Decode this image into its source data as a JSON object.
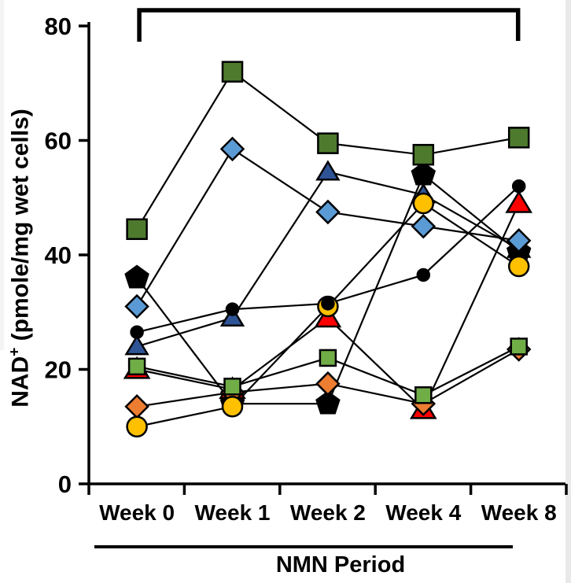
{
  "figure": {
    "ylabel_main": "NAD",
    "ylabel_sup": "+",
    "ylabel_rest": " (pmole/mg wet cells)",
    "xlabel": "NMN Period"
  },
  "chart_data": {
    "type": "line",
    "title": "",
    "xlabel": "NMN Period",
    "ylabel": "NAD+ (pmole/mg wet cells)",
    "categories": [
      "Week 0",
      "Week 1",
      "Week 2",
      "Week 4",
      "Week 8"
    ],
    "ylim": [
      0,
      80
    ],
    "yticks": [
      0,
      20,
      40,
      60,
      80
    ],
    "grid": false,
    "legend": "none",
    "line_color": "#000000",
    "annotation_bracket": {
      "x_from": "Week 0",
      "x_to": "Week 8",
      "label": ""
    },
    "series": [
      {
        "name": "subject-dark-green-square",
        "marker": "square",
        "color": "#4e7a2e",
        "marker_size": 12.5,
        "values": [
          44.5,
          72,
          59.5,
          57.5,
          60.5
        ]
      },
      {
        "name": "subject-blue-diamond",
        "marker": "diamond",
        "color": "#5b9bd5",
        "marker_size": 14,
        "values": [
          31,
          58.5,
          47.5,
          45,
          42.5
        ]
      },
      {
        "name": "subject-navy-triangle",
        "marker": "triangle",
        "color": "#2f5496",
        "marker_size": 12.5,
        "values": [
          24,
          29,
          54.5,
          50.5,
          41
        ]
      },
      {
        "name": "subject-black-pentagon",
        "marker": "pentagon",
        "color": "#000000",
        "marker_size": 15,
        "values": [
          36,
          14,
          14,
          54,
          40.5
        ]
      },
      {
        "name": "subject-black-circle",
        "marker": "circle",
        "color": "#000000",
        "marker_size": 7.5,
        "values": [
          26.5,
          30.5,
          31.5,
          36.5,
          52
        ]
      },
      {
        "name": "subject-yellow-circle",
        "marker": "circle",
        "color": "#ffc000",
        "marker_size": 12.5,
        "values": [
          10,
          13.5,
          31,
          49,
          38
        ]
      },
      {
        "name": "subject-orange-diamond",
        "marker": "diamond",
        "color": "#ed7d31",
        "marker_size": 14,
        "values": [
          13.5,
          16,
          17.5,
          14,
          23.5
        ]
      },
      {
        "name": "subject-red-triangle",
        "marker": "triangle",
        "color": "#ff0000",
        "marker_size": 14,
        "values": [
          20,
          16.5,
          29,
          13,
          49
        ]
      },
      {
        "name": "subject-light-green-square",
        "marker": "square",
        "color": "#70ad47",
        "marker_size": 10,
        "values": [
          20.5,
          17,
          22,
          15.5,
          24
        ]
      }
    ],
    "marker_draw_order": [
      2,
      3,
      7,
      6,
      5,
      8,
      0,
      1,
      4
    ]
  }
}
